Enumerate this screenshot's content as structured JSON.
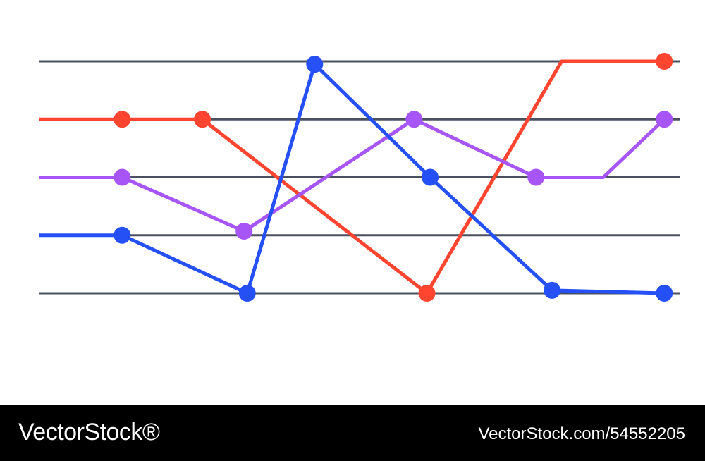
{
  "colors": {
    "grid": "#4a5060",
    "red": "#ff4530",
    "purple": "#a855f7",
    "blue": "#2450f5",
    "footer_bg": "#000000",
    "footer_text": "#ffffff"
  },
  "chart_data": {
    "type": "line",
    "grid": true,
    "ylim": [
      1,
      5
    ],
    "xlim": [
      0,
      10
    ],
    "levels": [
      1,
      2,
      3,
      4,
      5
    ],
    "series": [
      {
        "color": "#ff4530",
        "points": [
          [
            0,
            4
          ],
          [
            1.3,
            4
          ],
          [
            2.55,
            4
          ],
          [
            6.05,
            1
          ],
          [
            8.15,
            5
          ],
          [
            9.75,
            5
          ]
        ],
        "markers": [
          1,
          2,
          3,
          5
        ]
      },
      {
        "color": "#a855f7",
        "points": [
          [
            0,
            3
          ],
          [
            1.3,
            3
          ],
          [
            3.2,
            2.07
          ],
          [
            5.85,
            4
          ],
          [
            7.75,
            3
          ],
          [
            8.8,
            3
          ],
          [
            9.75,
            4
          ]
        ],
        "markers": [
          1,
          2,
          3,
          4,
          6
        ]
      },
      {
        "color": "#2450f5",
        "points": [
          [
            0,
            2
          ],
          [
            1.3,
            2
          ],
          [
            3.25,
            1
          ],
          [
            4.3,
            4.95
          ],
          [
            6.1,
            3
          ],
          [
            8.0,
            1.05
          ],
          [
            9.75,
            1
          ]
        ],
        "markers": [
          1,
          2,
          3,
          4,
          5,
          6
        ]
      }
    ]
  },
  "footer": {
    "brand": "VectorStock®",
    "stock_id": "VectorStock.com/54552205"
  }
}
